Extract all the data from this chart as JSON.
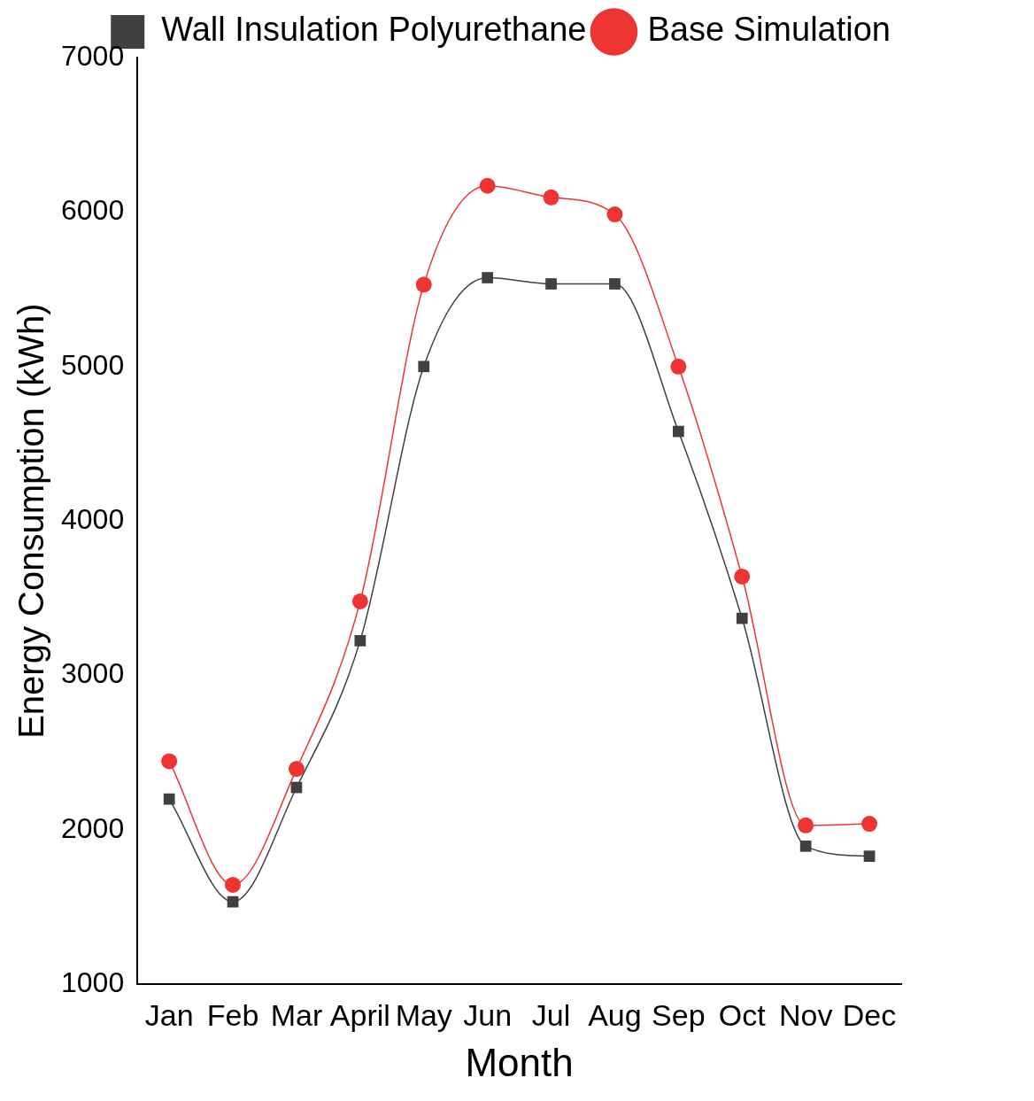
{
  "chart_data": {
    "type": "line",
    "xlabel": "Month",
    "ylabel": "Energy Consumption (kWh)",
    "categories": [
      "Jan",
      "Feb",
      "Mar",
      "April",
      "May",
      "Jun",
      "Jul",
      "Aug",
      "Sep",
      "Oct",
      "Nov",
      "Dec"
    ],
    "series": [
      {
        "name": "Wall Insulation Polyurethane",
        "color": "#404040",
        "marker": "square",
        "values": [
          2200,
          1535,
          2275,
          3225,
          5000,
          5575,
          5535,
          5535,
          4580,
          3370,
          1895,
          1830
        ]
      },
      {
        "name": "Base Simulation",
        "color": "#ee3333",
        "marker": "circle",
        "values": [
          2445,
          1645,
          2395,
          3480,
          5530,
          6170,
          6095,
          5985,
          5000,
          3640,
          2030,
          2040
        ]
      }
    ],
    "ylim": [
      1000,
      7000
    ],
    "yticks": [
      1000,
      2000,
      3000,
      4000,
      5000,
      6000,
      7000
    ],
    "grid": false,
    "legend": "top right",
    "line_style": "solid"
  }
}
